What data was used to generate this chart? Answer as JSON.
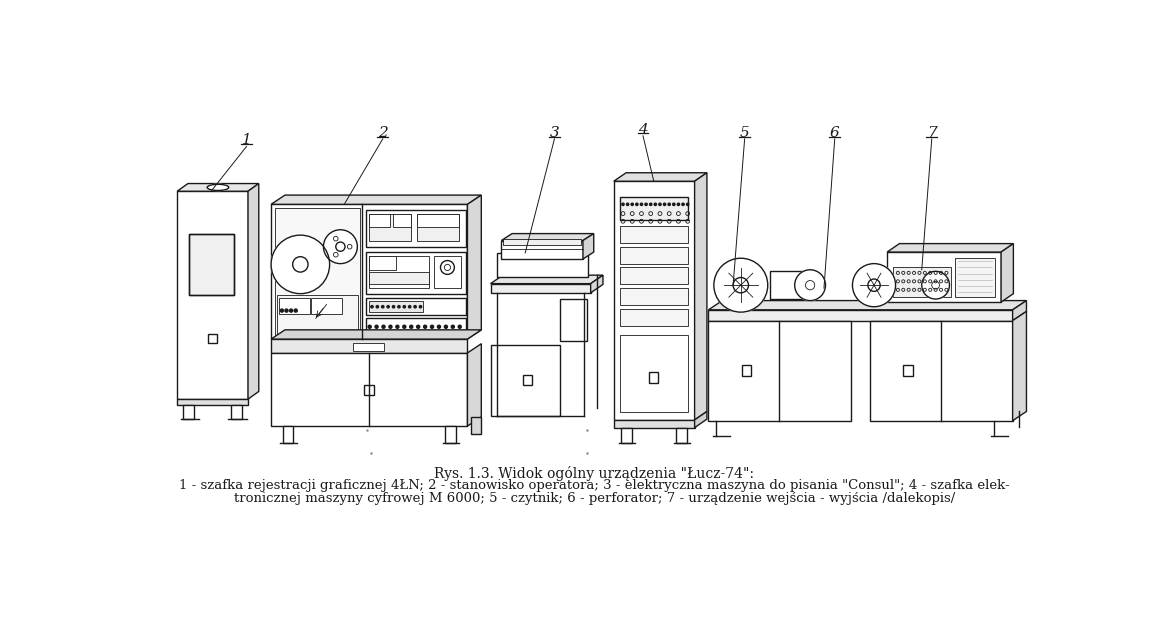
{
  "background_color": "#ffffff",
  "line_color": "#1a1a1a",
  "title_line1": "Rys. 1.3. Widok ogólny urządzenia \"Łucz-74\":",
  "caption_line1": "1 - szafka rejestracji graficznej 4ŁN; 2 - stanowisko operatora; 3 - elektryczna maszyna do pisania \"Consul\"; 4 - szafka elek-",
  "caption_line2": "tronicznej maszyny cyfrowej M 6000; 5 - czytnik; 6 - perforator; 7 - urządzenie wejścia - wyjścia /dalekopis/",
  "title_fontsize": 10,
  "caption_fontsize": 9.5,
  "label_fontsize": 11
}
